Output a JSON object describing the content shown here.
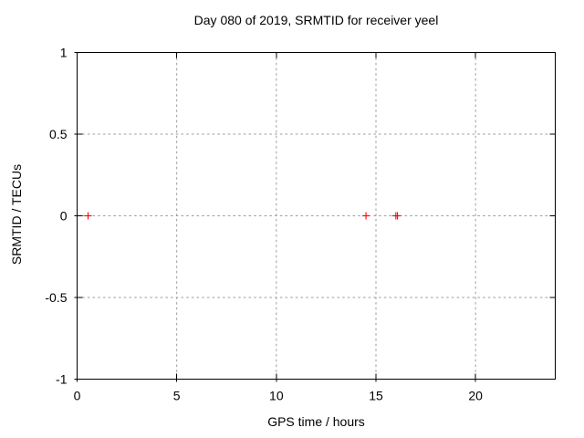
{
  "window": {
    "background_color": "#ffffff"
  },
  "chart_data": {
    "type": "scatter",
    "title": "Day 080 of 2019, SRMTID for receiver yeel",
    "xlabel": "GPS time / hours",
    "ylabel": "SRMTID / TECUs",
    "xlim": [
      0,
      24
    ],
    "ylim": [
      -1,
      1
    ],
    "xticks": [
      0,
      5,
      10,
      15,
      20
    ],
    "xtick_labels": [
      "0",
      "5",
      "10",
      "15",
      "20"
    ],
    "yticks": [
      1,
      0.5,
      0,
      -0.5,
      -1
    ],
    "ytick_labels": [
      "1",
      "0.5",
      "0",
      "-0.5",
      "-1"
    ],
    "grid": true,
    "legend_position": "none",
    "marker": "plus",
    "series": [
      {
        "name": "SRMTID",
        "color": "#ff0000",
        "points": [
          {
            "x": 0.55,
            "y": 0
          },
          {
            "x": 14.5,
            "y": 0
          },
          {
            "x": 16.0,
            "y": 0
          },
          {
            "x": 16.08,
            "y": 0
          }
        ]
      }
    ],
    "colors": {
      "axis": "#000000",
      "grid": "#9a9a9a",
      "text": "#000000",
      "marker": "#ff0000"
    }
  }
}
